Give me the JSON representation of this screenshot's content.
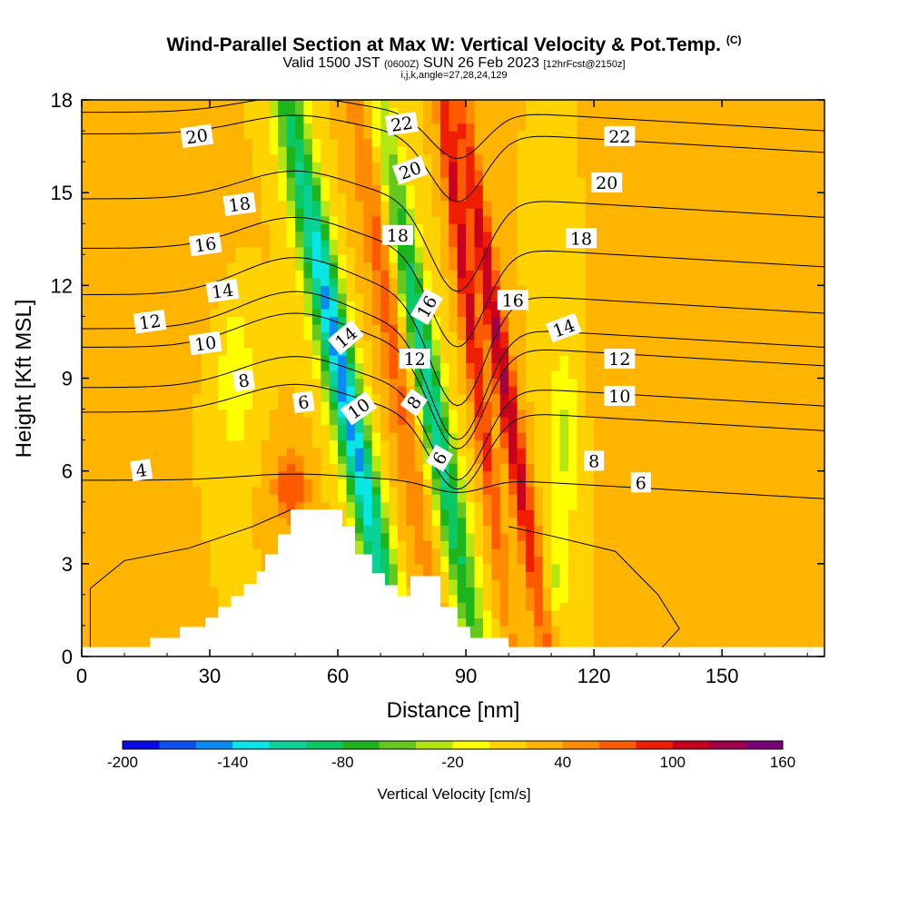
{
  "chart_data": {
    "type": "heatmap",
    "title": "Wind-Parallel Section at Max W: Vertical Velocity & Pot.Temp.",
    "title_mark": "(C)",
    "subtitle": {
      "valid_prefix": "Valid 1500 JST",
      "utc": "(0600Z)",
      "date": "SUN 26 Feb 2023",
      "forecast": "[12hrFcst@2150z]"
    },
    "indices": "i,j,k,angle=27,28,24,129",
    "xlabel": "Distance [nm]",
    "ylabel": "Height [Kft MSL]",
    "xlim": [
      0,
      174
    ],
    "ylim": [
      0,
      18
    ],
    "xticks": [
      0,
      30,
      60,
      90,
      120,
      150
    ],
    "yticks": [
      0,
      3,
      6,
      9,
      12,
      15,
      18
    ],
    "colorbar": {
      "label": "Vertical Velocity [cm/s]",
      "ticks": [
        -200,
        -140,
        -80,
        -20,
        40,
        100,
        160
      ],
      "min": -200,
      "step": 20,
      "colors": [
        "#0a0ae6",
        "#0a50f0",
        "#0a8cf5",
        "#0ae6e6",
        "#0ad296",
        "#0ac864",
        "#1eb41e",
        "#64c81e",
        "#b4e614",
        "#ffff00",
        "#ffd200",
        "#ffb400",
        "#ff8c00",
        "#ff5a00",
        "#f01e00",
        "#c8001e",
        "#a0004b",
        "#780078"
      ]
    },
    "terrain_profile": [
      [
        0,
        0.3
      ],
      [
        16,
        0.3
      ],
      [
        16,
        0.6
      ],
      [
        23,
        0.6
      ],
      [
        23,
        0.95
      ],
      [
        29,
        0.95
      ],
      [
        29,
        1.25
      ],
      [
        32,
        1.25
      ],
      [
        32,
        1.6
      ],
      [
        35,
        1.6
      ],
      [
        35,
        1.95
      ],
      [
        38,
        1.95
      ],
      [
        38,
        2.35
      ],
      [
        41,
        2.35
      ],
      [
        41,
        2.75
      ],
      [
        43,
        2.75
      ],
      [
        43,
        3.3
      ],
      [
        46,
        3.3
      ],
      [
        46,
        3.95
      ],
      [
        49,
        3.95
      ],
      [
        49,
        4.75
      ],
      [
        61,
        4.75
      ],
      [
        61,
        4.2
      ],
      [
        64,
        4.2
      ],
      [
        64,
        3.3
      ],
      [
        68,
        3.3
      ],
      [
        68,
        2.7
      ],
      [
        71,
        2.7
      ],
      [
        71,
        2.3
      ],
      [
        74,
        2.3
      ],
      [
        74,
        1.95
      ],
      [
        77,
        1.95
      ],
      [
        77,
        2.6
      ],
      [
        84,
        2.6
      ],
      [
        84,
        1.6
      ],
      [
        88,
        1.6
      ],
      [
        88,
        0.95
      ],
      [
        91,
        0.95
      ],
      [
        91,
        0.6
      ],
      [
        100,
        0.6
      ],
      [
        100,
        0.3
      ],
      [
        174,
        0.3
      ]
    ],
    "w_features": [
      {
        "x": 49,
        "z": 5.5,
        "sx": 4,
        "sz": 1.2,
        "w": 60
      },
      {
        "x": 22,
        "z": 13.5,
        "sx": 10,
        "sz": 2.5,
        "w": 20
      },
      {
        "x": 8,
        "z": 3,
        "sx": 8,
        "sz": 3,
        "w": 20
      },
      {
        "x": 130,
        "z": 8,
        "sx": 10,
        "sz": 3,
        "w": 15
      },
      {
        "x": 150,
        "z": 16,
        "sx": 8,
        "sz": 2,
        "w": 15
      },
      {
        "x": 160,
        "z": 2.5,
        "sx": 7,
        "sz": 2,
        "w": 15
      },
      {
        "x": 36,
        "z": 9,
        "sx": 4,
        "sz": 2.5,
        "w": -40
      },
      {
        "x": 113,
        "z": 7,
        "sx": 4,
        "sz": 3,
        "w": -45
      },
      {
        "x": 111,
        "z": 2.5,
        "sx": 3,
        "sz": 1.5,
        "w": -40
      }
    ],
    "w_plumes": [
      {
        "x0": 48,
        "z0": 17.8,
        "slope": 1.35,
        "half_width": 4.2,
        "w": -80
      },
      {
        "x0": 58,
        "z0": 11.5,
        "slope": 1.4,
        "half_width": 3.6,
        "w": -115
      },
      {
        "x0": 75,
        "z0": 13.5,
        "slope": 1.3,
        "half_width": 3.6,
        "w": -135
      },
      {
        "x0": 66,
        "z0": 17.5,
        "slope": 1.0,
        "half_width": 3.8,
        "w": 55
      },
      {
        "x0": 92.5,
        "z0": 14.5,
        "slope": 1.15,
        "half_width": 2.4,
        "w": 105
      },
      {
        "x0": 85,
        "z0": 17.5,
        "slope": 0.9,
        "half_width": 2.0,
        "w": 90
      }
    ],
    "theta_contours": [
      {
        "label": "4",
        "z": 5.7,
        "ridge_rise": 0.2,
        "lee_dip": 0.4,
        "label_at": [
          14,
          6.0
        ]
      },
      {
        "label": "6",
        "z": 7.9,
        "ridge_rise": 0.9,
        "lee_dip": 2.5,
        "label_at": [
          52,
          8.2
        ]
      },
      {
        "label": "8",
        "z": 8.7,
        "ridge_rise": 1.0,
        "lee_dip": 3.0,
        "label_at": [
          38,
          8.9
        ]
      },
      {
        "label": "10",
        "z": 10.0,
        "ridge_rise": 1.1,
        "lee_dip": 3.3,
        "label_at": [
          29,
          10.1
        ]
      },
      {
        "label": "12",
        "z": 10.6,
        "ridge_rise": 1.2,
        "lee_dip": 3.6,
        "label_at": [
          16,
          10.8
        ]
      },
      {
        "label": "14",
        "z": 11.7,
        "ridge_rise": 1.2,
        "lee_dip": 3.6,
        "label_at": [
          33,
          11.8
        ]
      },
      {
        "label": "16",
        "z": 13.2,
        "ridge_rise": 1.0,
        "lee_dip": 3.2,
        "label_at": [
          29,
          13.3
        ]
      },
      {
        "label": "18",
        "z": 14.8,
        "ridge_rise": 0.9,
        "lee_dip": 3.0,
        "label_at": [
          37,
          14.6
        ]
      },
      {
        "label": "20",
        "z": 16.9,
        "ridge_rise": 0.6,
        "lee_dip": 2.2,
        "label_at": [
          27,
          16.8
        ]
      },
      {
        "label": "22",
        "z": 17.6,
        "ridge_rise": 0.5,
        "lee_dip": 1.5,
        "label_at": [
          75,
          17.2
        ]
      }
    ],
    "theta_labels_extra": [
      {
        "label": "6",
        "at": [
          84,
          6.4
        ],
        "rotate": -60
      },
      {
        "label": "8",
        "at": [
          78,
          8.2
        ],
        "rotate": -55
      },
      {
        "label": "10",
        "at": [
          65,
          8.0
        ],
        "rotate": -35
      },
      {
        "label": "12",
        "at": [
          78,
          9.6
        ],
        "rotate": 0
      },
      {
        "label": "14",
        "at": [
          62,
          10.3
        ],
        "rotate": -40
      },
      {
        "label": "16",
        "at": [
          81,
          11.3
        ],
        "rotate": -60
      },
      {
        "label": "18",
        "at": [
          74,
          13.6
        ],
        "rotate": 0
      },
      {
        "label": "20",
        "at": [
          77,
          15.7
        ],
        "rotate": -20
      },
      {
        "label": "6",
        "at": [
          131,
          5.6
        ],
        "rotate": 0
      },
      {
        "label": "8",
        "at": [
          120,
          6.3
        ],
        "rotate": 0
      },
      {
        "label": "10",
        "at": [
          126,
          8.4
        ],
        "rotate": 0
      },
      {
        "label": "12",
        "at": [
          126,
          9.6
        ],
        "rotate": 0
      },
      {
        "label": "14",
        "at": [
          113,
          10.6
        ],
        "rotate": -20
      },
      {
        "label": "16",
        "at": [
          101,
          11.5
        ],
        "rotate": 0
      },
      {
        "label": "18",
        "at": [
          117,
          13.5
        ],
        "rotate": 0
      },
      {
        "label": "20",
        "at": [
          123,
          15.3
        ],
        "rotate": 0
      },
      {
        "label": "22",
        "at": [
          126,
          16.8
        ],
        "rotate": 0
      }
    ]
  }
}
